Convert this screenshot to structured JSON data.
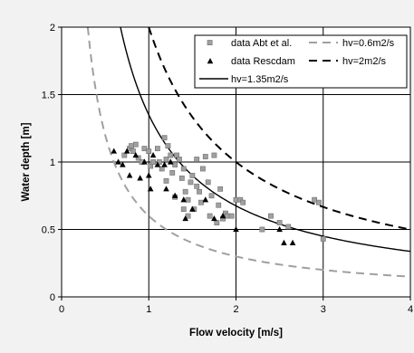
{
  "chart_data": {
    "type": "scatter",
    "xlabel": "Flow velocity [m/s]",
    "ylabel": "Water depth [m]",
    "xlim": [
      0,
      4
    ],
    "ylim": [
      0,
      2
    ],
    "xticks": [
      0,
      1,
      2,
      3,
      4
    ],
    "xtick_labels": [
      "0",
      "1",
      "2",
      "3",
      "4"
    ],
    "yticks": [
      0,
      0.5,
      1,
      1.5,
      2
    ],
    "ytick_labels": [
      "0",
      "0.5",
      "1",
      "1.5",
      "2"
    ],
    "grid": true,
    "legend_position": "top-right",
    "colors": {
      "background": "#f2f2f2",
      "plot_background": "#ffffff",
      "grid": "#000000",
      "abt_marker": "#a0a0a0",
      "rescdam_marker": "#000000",
      "curve_0_6": "#a0a0a0",
      "curve_2": "#000000",
      "curve_1_35": "#000000"
    },
    "series": [
      {
        "name": "data Abt et al.",
        "kind": "scatter",
        "marker": "square",
        "points": [
          [
            0.72,
            1.05
          ],
          [
            0.78,
            1.1
          ],
          [
            0.8,
            1.12
          ],
          [
            0.82,
            1.08
          ],
          [
            0.85,
            1.13
          ],
          [
            0.88,
            1.03
          ],
          [
            0.92,
            1.0
          ],
          [
            0.95,
            1.1
          ],
          [
            1.0,
            1.08
          ],
          [
            1.02,
            0.97
          ],
          [
            1.05,
            1.0
          ],
          [
            1.1,
            1.1
          ],
          [
            1.12,
            1.0
          ],
          [
            1.15,
            0.95
          ],
          [
            1.18,
            1.18
          ],
          [
            1.2,
            1.02
          ],
          [
            1.22,
            1.12
          ],
          [
            1.25,
            1.05
          ],
          [
            1.27,
            0.92
          ],
          [
            1.3,
            0.98
          ],
          [
            1.32,
            1.05
          ],
          [
            1.35,
            1.02
          ],
          [
            1.38,
            0.88
          ],
          [
            1.4,
            0.95
          ],
          [
            1.42,
            0.78
          ],
          [
            1.45,
            0.72
          ],
          [
            1.48,
            0.85
          ],
          [
            1.5,
            0.9
          ],
          [
            1.52,
            0.65
          ],
          [
            1.55,
            1.02
          ],
          [
            1.58,
            0.78
          ],
          [
            1.6,
            0.7
          ],
          [
            1.62,
            0.95
          ],
          [
            1.65,
            1.04
          ],
          [
            1.68,
            0.85
          ],
          [
            1.7,
            0.6
          ],
          [
            1.72,
            0.75
          ],
          [
            1.75,
            1.05
          ],
          [
            1.78,
            0.55
          ],
          [
            1.8,
            0.68
          ],
          [
            1.82,
            0.8
          ],
          [
            1.85,
            0.58
          ],
          [
            1.88,
            0.62
          ],
          [
            1.9,
            0.6
          ],
          [
            1.95,
            0.6
          ],
          [
            2.0,
            0.72
          ],
          [
            2.05,
            0.72
          ],
          [
            2.08,
            0.7
          ],
          [
            2.3,
            0.5
          ],
          [
            2.4,
            0.6
          ],
          [
            2.5,
            0.55
          ],
          [
            2.6,
            0.52
          ],
          [
            2.9,
            0.72
          ],
          [
            2.95,
            0.7
          ],
          [
            3.0,
            0.43
          ],
          [
            1.4,
            0.65
          ],
          [
            1.55,
            0.82
          ],
          [
            1.3,
            0.74
          ],
          [
            1.45,
            0.6
          ],
          [
            1.2,
            0.86
          ]
        ]
      },
      {
        "name": "data Rescdam",
        "kind": "scatter",
        "marker": "triangle",
        "points": [
          [
            0.6,
            1.08
          ],
          [
            0.65,
            1.0
          ],
          [
            0.7,
            0.98
          ],
          [
            0.75,
            1.08
          ],
          [
            0.78,
            0.9
          ],
          [
            0.85,
            1.05
          ],
          [
            0.9,
            0.88
          ],
          [
            0.95,
            1.0
          ],
          [
            1.0,
            0.9
          ],
          [
            1.02,
            0.8
          ],
          [
            1.05,
            1.05
          ],
          [
            1.1,
            0.98
          ],
          [
            1.18,
            0.98
          ],
          [
            1.2,
            0.8
          ],
          [
            1.25,
            1.0
          ],
          [
            1.3,
            0.75
          ],
          [
            1.4,
            0.72
          ],
          [
            1.42,
            0.58
          ],
          [
            1.5,
            0.65
          ],
          [
            1.65,
            0.72
          ],
          [
            1.75,
            0.58
          ],
          [
            1.85,
            0.6
          ],
          [
            2.0,
            0.5
          ],
          [
            2.5,
            0.5
          ],
          [
            2.55,
            0.4
          ],
          [
            2.65,
            0.4
          ]
        ]
      },
      {
        "name": "hv=0.6m2/s",
        "kind": "curve",
        "hv": 0.6,
        "line_style": "dashed",
        "color": "#a0a0a0"
      },
      {
        "name": "hv=2m2/s",
        "kind": "curve",
        "hv": 2,
        "line_style": "dashed",
        "color": "#000000"
      },
      {
        "name": "hv=1.35m2/s",
        "kind": "curve",
        "hv": 1.35,
        "line_style": "solid",
        "color": "#000000"
      }
    ]
  }
}
